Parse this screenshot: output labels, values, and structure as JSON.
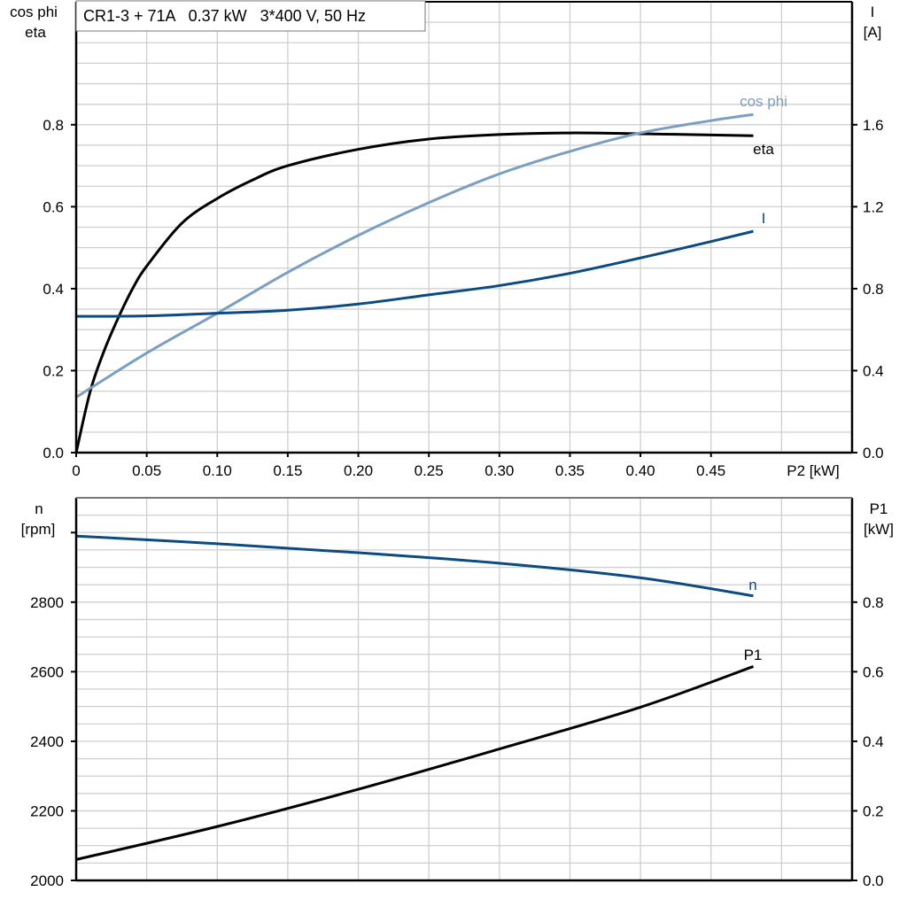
{
  "title": "CR1-3 + 71A   0.37 kW   3*400 V, 50 Hz",
  "chart_data": [
    {
      "type": "line",
      "x_label": "P2 [kW]",
      "x_ticks": [
        "0",
        "0.05",
        "0.10",
        "0.15",
        "0.20",
        "0.25",
        "0.30",
        "0.35",
        "0.40",
        "0.45"
      ],
      "xlim": [
        0,
        0.55
      ],
      "left_axis": {
        "label_line1": "cos phi",
        "label_line2": "eta",
        "ylim": [
          0,
          1.1
        ],
        "ticks": [
          "0.0",
          "0.2",
          "0.4",
          "0.6",
          "0.8"
        ]
      },
      "right_axis": {
        "label_line1": "I",
        "label_line2": "[A]",
        "ylim": [
          0,
          2.2
        ],
        "ticks": [
          "0.0",
          "0.4",
          "0.8",
          "1.2",
          "1.6"
        ]
      },
      "grid": true,
      "series": [
        {
          "name": "eta",
          "axis": "left",
          "color": "#000000",
          "x": [
            0,
            0.01,
            0.02,
            0.03,
            0.04,
            0.05,
            0.075,
            0.1,
            0.125,
            0.15,
            0.2,
            0.25,
            0.3,
            0.35,
            0.4,
            0.45,
            0.48
          ],
          "y": [
            0,
            0.15,
            0.25,
            0.33,
            0.4,
            0.455,
            0.56,
            0.62,
            0.665,
            0.7,
            0.74,
            0.765,
            0.776,
            0.78,
            0.778,
            0.775,
            0.773
          ]
        },
        {
          "name": "cos phi",
          "axis": "left",
          "color": "#7a9fc2",
          "x": [
            0,
            0.05,
            0.1,
            0.15,
            0.2,
            0.25,
            0.3,
            0.35,
            0.4,
            0.45,
            0.48
          ],
          "y": [
            0.135,
            0.243,
            0.34,
            0.44,
            0.53,
            0.61,
            0.68,
            0.735,
            0.78,
            0.81,
            0.825
          ]
        },
        {
          "name": "I",
          "axis": "right",
          "color": "#0b4a82",
          "x": [
            0,
            0.05,
            0.1,
            0.15,
            0.2,
            0.25,
            0.3,
            0.35,
            0.4,
            0.45,
            0.48
          ],
          "y": [
            0.665,
            0.667,
            0.68,
            0.695,
            0.725,
            0.77,
            0.815,
            0.875,
            0.95,
            1.03,
            1.08
          ]
        }
      ]
    },
    {
      "type": "line",
      "xlim": [
        0,
        0.55
      ],
      "left_axis": {
        "label_line1": "n",
        "label_line2": "[rpm]",
        "ylim": [
          2000,
          3100
        ],
        "ticks": [
          "2000",
          "2200",
          "2400",
          "2600",
          "2800"
        ]
      },
      "right_axis": {
        "label_line1": "P1",
        "label_line2": "[kW]",
        "ylim": [
          0,
          1.1
        ],
        "ticks": [
          "0.0",
          "0.2",
          "0.4",
          "0.6",
          "0.8"
        ]
      },
      "grid": true,
      "series": [
        {
          "name": "n",
          "axis": "left",
          "color": "#0b4a82",
          "x": [
            0,
            0.1,
            0.2,
            0.3,
            0.4,
            0.48
          ],
          "y": [
            2990,
            2968,
            2942,
            2912,
            2870,
            2818
          ]
        },
        {
          "name": "P1",
          "axis": "right",
          "color": "#000000",
          "x": [
            0,
            0.1,
            0.2,
            0.3,
            0.4,
            0.48
          ],
          "y": [
            0.06,
            0.155,
            0.262,
            0.378,
            0.498,
            0.615
          ]
        }
      ]
    }
  ]
}
